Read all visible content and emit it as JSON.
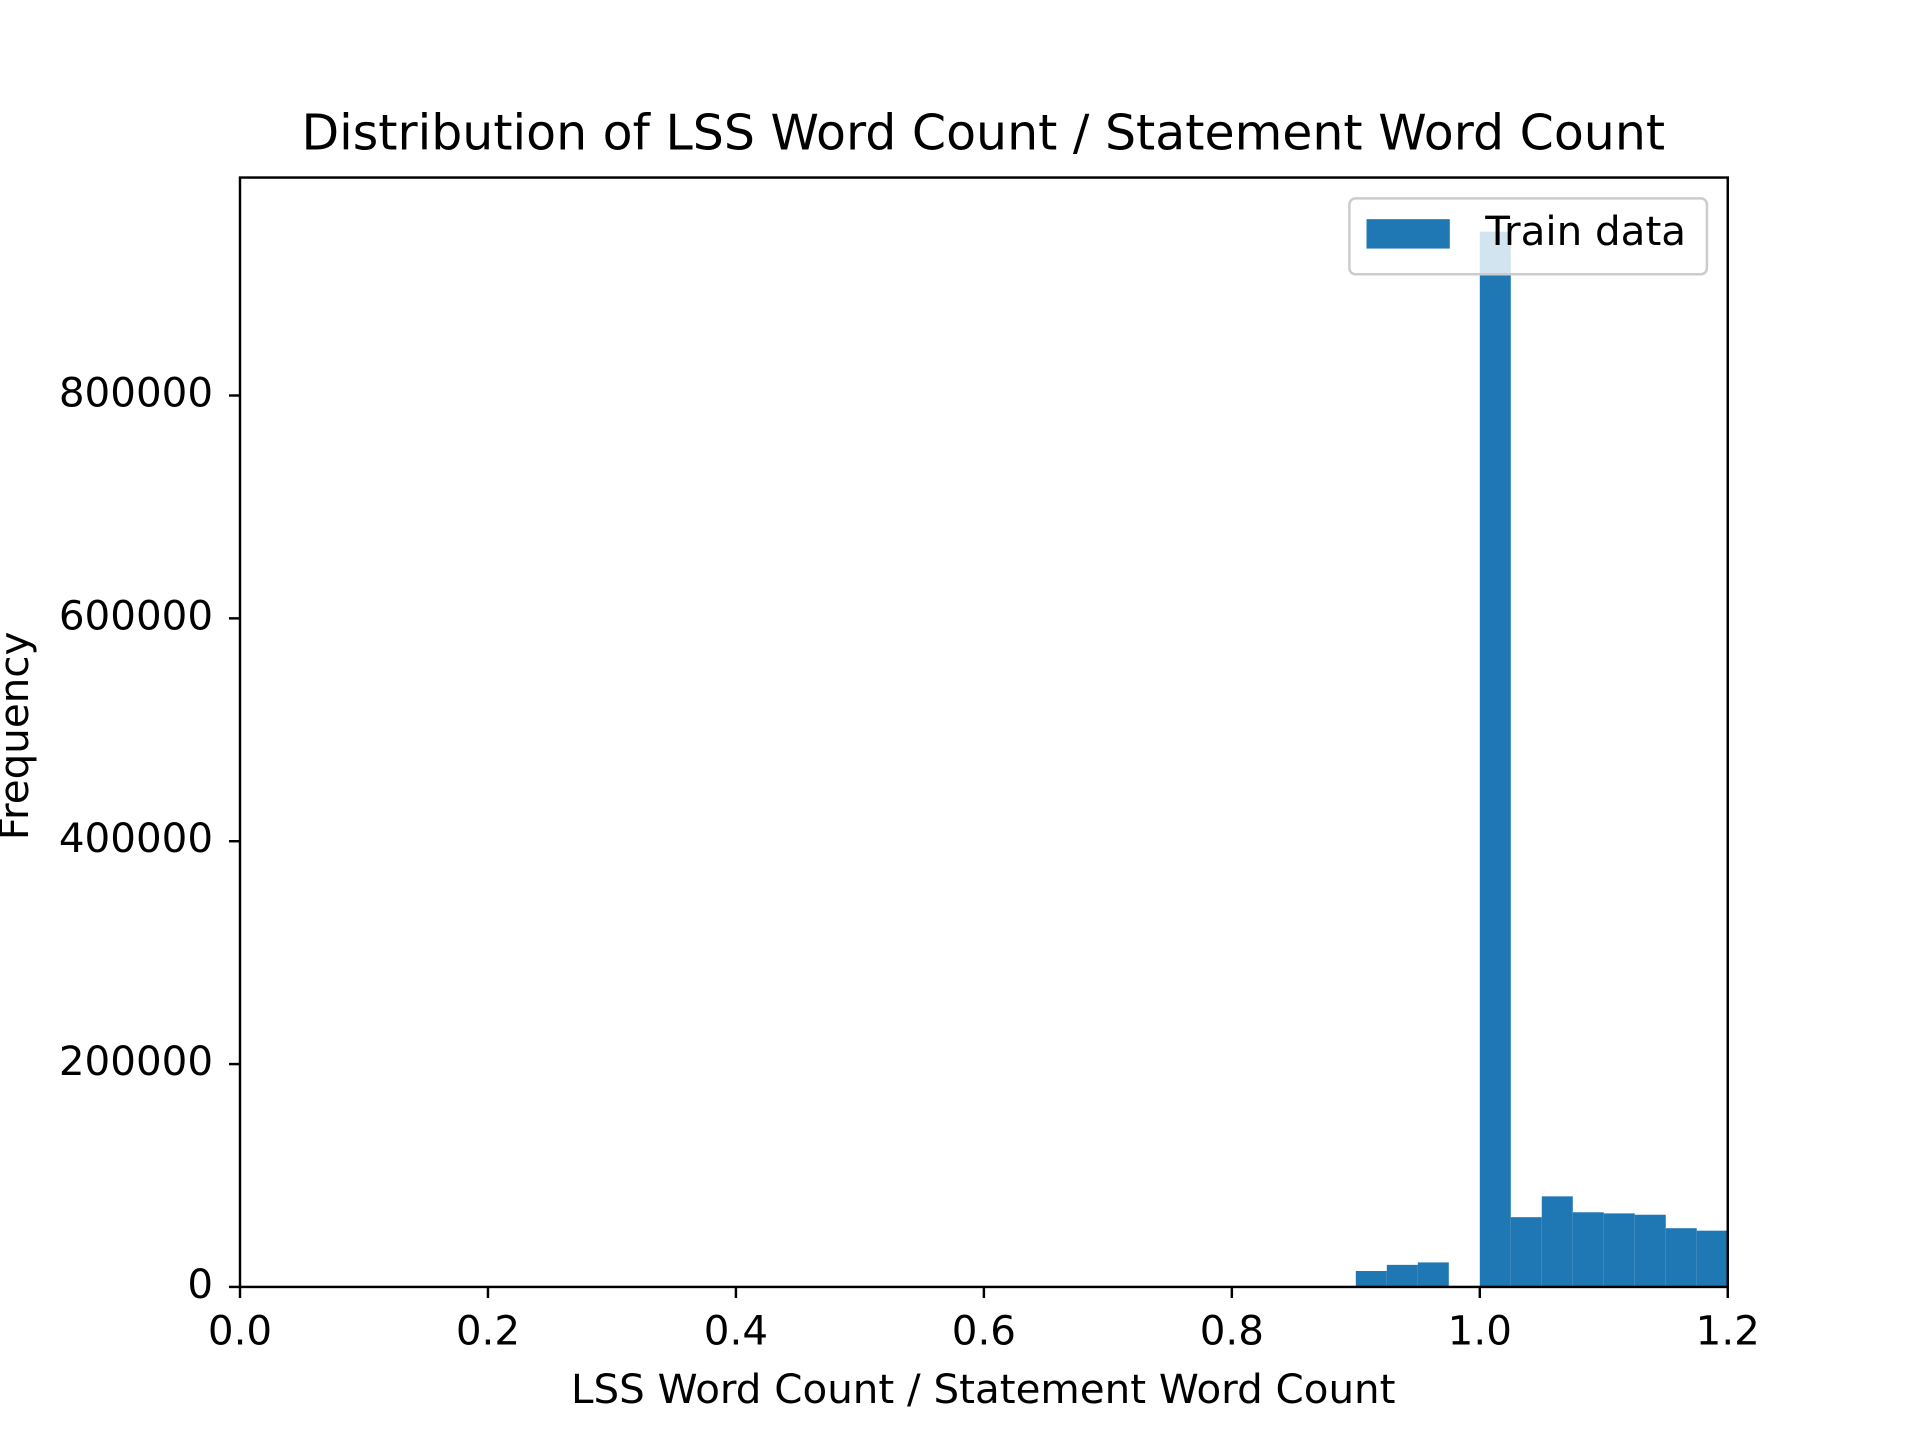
{
  "chart_data": {
    "type": "histogram",
    "title": "Distribution of LSS Word Count / Statement Word Count",
    "xlabel": "LSS Word Count / Statement Word Count",
    "ylabel": "Frequency",
    "series": [
      {
        "name": "Train data",
        "color": "#1f77b4",
        "bins": [
          0.9,
          0.925,
          0.95,
          0.975,
          1.0,
          1.025,
          1.05,
          1.075,
          1.1,
          1.125,
          1.15,
          1.175,
          1.2
        ],
        "values": [
          14300,
          19800,
          22000,
          0,
          947000,
          62600,
          81300,
          67000,
          66000,
          64800,
          52700,
          50500
        ]
      }
    ],
    "xlim": [
      0,
      1.2
    ],
    "xticks": [
      {
        "value": 0,
        "label": "0.0"
      },
      0.2,
      0.4,
      0.6,
      0.8,
      {
        "value": 1,
        "label": "1.0"
      },
      1.2
    ],
    "ylim": [
      0,
      995600
    ],
    "yticks": [
      0,
      200000,
      400000,
      600000,
      800000
    ],
    "legend": "upper right",
    "grid": false
  }
}
